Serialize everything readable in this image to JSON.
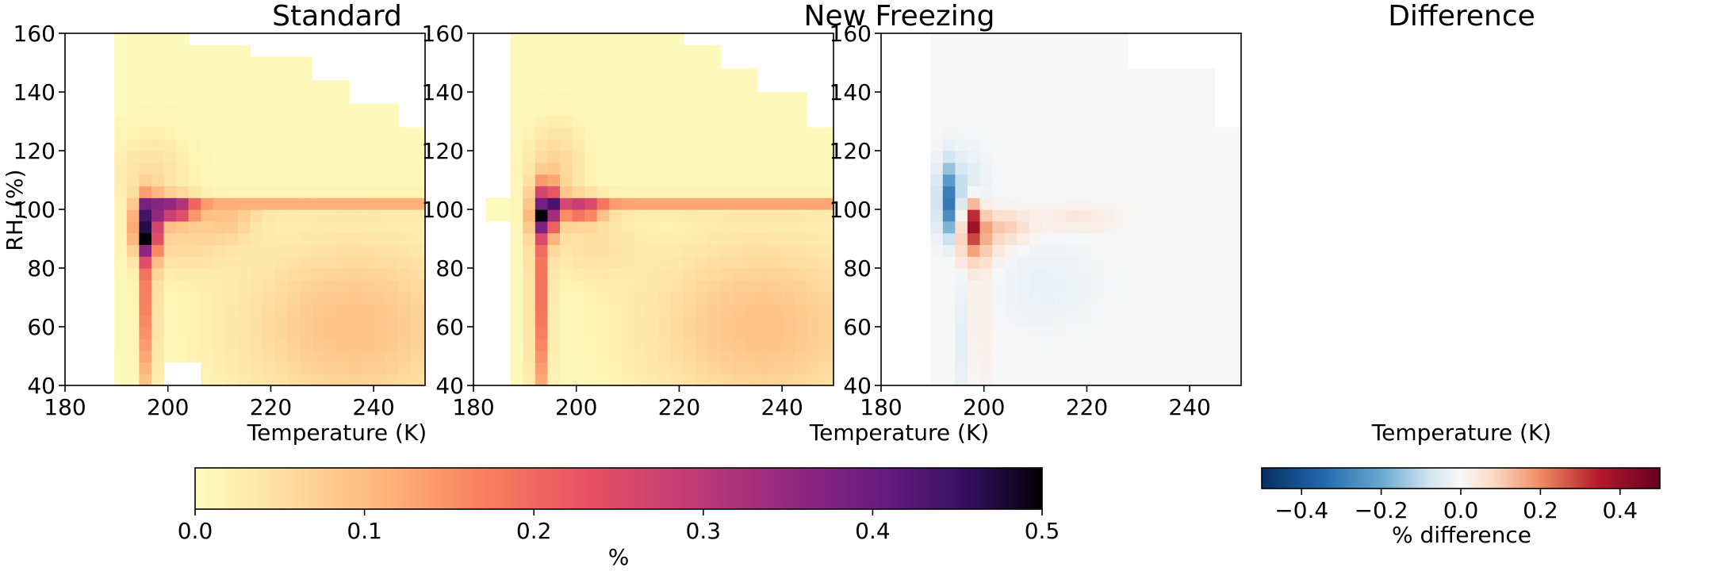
{
  "chart_data": [
    {
      "type": "heatmap",
      "title": "Standard",
      "xlabel": "Temperature (K)",
      "ylabel": "RH",
      "ylabel_sub": "i",
      "ylabel_unit": " (%)",
      "xlim": [
        180,
        250
      ],
      "ylim": [
        40,
        160
      ],
      "xticks": [
        180,
        200,
        220,
        240
      ],
      "yticks": [
        40,
        60,
        80,
        100,
        120,
        140,
        160
      ],
      "colormap": "magma_r",
      "clim": [
        0,
        0.5
      ],
      "peak": {
        "x": 196,
        "y": 94,
        "value": 0.5
      },
      "ridge_value": 0.11,
      "cells_regions": "bins of ~2.4 K x ~4 %RH, values estimated"
    },
    {
      "type": "heatmap",
      "title": "New Freezing",
      "xlabel": "Temperature (K)",
      "xlim": [
        180,
        250
      ],
      "ylim": [
        40,
        160
      ],
      "xticks": [
        180,
        200,
        220,
        240
      ],
      "yticks": [
        40,
        60,
        80,
        100,
        120,
        140,
        160
      ],
      "colormap": "magma_r",
      "clim": [
        0,
        0.5
      ],
      "peak": {
        "x": 194,
        "y": 100,
        "value": 0.48
      },
      "ridge_value": 0.12
    },
    {
      "type": "heatmap",
      "title": "Difference",
      "xlabel": "Temperature (K)",
      "xlim": [
        180,
        250
      ],
      "ylim": [
        40,
        160
      ],
      "xticks": [
        180,
        200,
        220,
        240
      ],
      "yticks": [
        40,
        60,
        80,
        100,
        120,
        140,
        160
      ],
      "colormap": "RdBu_r",
      "clim": [
        -0.5,
        0.5
      ],
      "min": {
        "x": 193,
        "y": 102,
        "value": -0.28
      },
      "max": {
        "x": 198,
        "y": 96,
        "value": 0.33
      }
    }
  ],
  "colorbars": [
    {
      "label": "%",
      "ticks": [
        "0.0",
        "0.1",
        "0.2",
        "0.3",
        "0.4",
        "0.5"
      ],
      "range": [
        0,
        0.5
      ]
    },
    {
      "label": "% difference",
      "ticks": [
        "−0.4",
        "−0.2",
        "0.0",
        "0.2",
        "0.4"
      ],
      "range": [
        -0.5,
        0.5
      ]
    }
  ]
}
